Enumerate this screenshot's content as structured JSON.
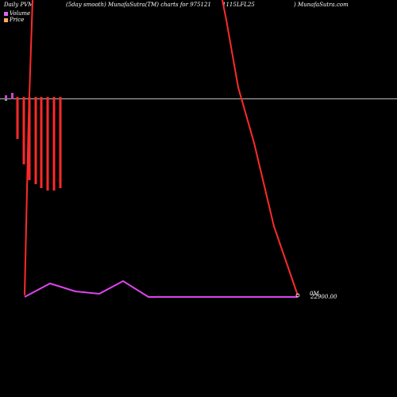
{
  "header": {
    "left": "Daily PVM",
    "center": "(5day smooth) MunafaSutra(TM) charts for 975121",
    "code": "1115LFL25",
    "right": ") MunafaSutra.com"
  },
  "legend": [
    {
      "label": "Volume",
      "color": "#dd66ee"
    },
    {
      "label": "Price",
      "color": "#ffaa66"
    }
  ],
  "chart_data": {
    "type": "line",
    "volume_axis_label": "0M",
    "price_axis_label": "22900.00",
    "colors": {
      "price": "#ff2a2a",
      "pvm": "#dd44ee",
      "volume_bar": "#ff2a2a",
      "reference_line": "#bbbbbb",
      "small_green": "#44cc66",
      "small_magenta": "#cc44cc"
    },
    "series": [
      {
        "key": "pvm",
        "values": [
          0,
          17,
          7,
          4,
          20,
          0,
          0,
          0,
          0,
          0,
          0,
          0,
          0
        ]
      },
      {
        "key": "price",
        "values": [
          22900,
          22945,
          22945,
          22945,
          22945,
          22945,
          22945,
          22945,
          22945,
          22945,
          22945,
          22942,
          22900
        ]
      },
      {
        "key": "volume",
        "values": [
          0.53,
          0.85,
          1.05,
          1.1,
          1.15,
          1.18,
          1.18,
          1.15
        ]
      }
    ]
  }
}
